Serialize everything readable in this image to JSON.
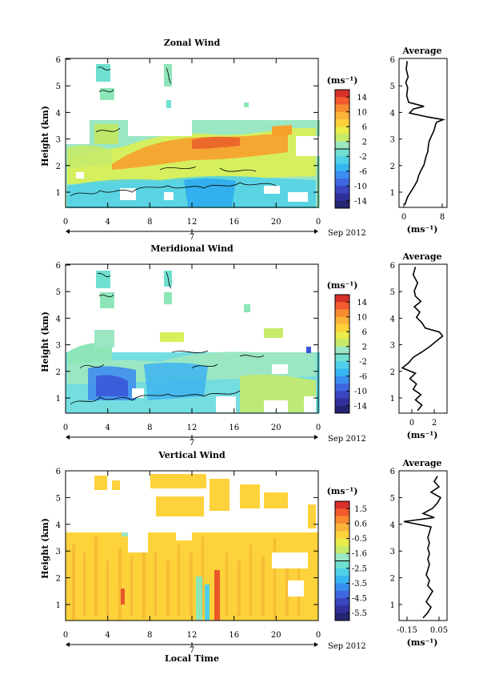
{
  "chart_data": [
    {
      "type": "heatmap",
      "title": "Zonal Wind",
      "ylabel": "Height (km)",
      "xlim": [
        0,
        24
      ],
      "ylim": [
        0.4,
        6
      ],
      "x_ticks": [
        "0",
        "4",
        "8",
        "12",
        "16",
        "20",
        "0"
      ],
      "y_ticks": [
        "1",
        "2",
        "3",
        "4",
        "5",
        "6"
      ],
      "date_label": "7",
      "month_label": "Sep 2012",
      "colorbar": {
        "unit": "(ms⁻¹)",
        "ticks": [
          "14",
          "10",
          "6",
          "2",
          "-2",
          "-6",
          "-10",
          "-14"
        ],
        "range": [
          -16,
          16
        ]
      },
      "profile": {
        "title": "Average",
        "xlabel": "(ms⁻¹)",
        "xlim": [
          -1,
          9
        ],
        "x_ticks": [
          "0",
          "8"
        ],
        "points": [
          [
            0.2,
            0.5
          ],
          [
            0.8,
            0.8
          ],
          [
            1.5,
            1.0
          ],
          [
            2.2,
            1.2
          ],
          [
            2.8,
            1.4
          ],
          [
            3.1,
            1.6
          ],
          [
            3.6,
            1.8
          ],
          [
            4.2,
            2.0
          ],
          [
            4.6,
            2.3
          ],
          [
            5.0,
            2.5
          ],
          [
            5.1,
            2.7
          ],
          [
            5.3,
            2.9
          ],
          [
            5.8,
            3.1
          ],
          [
            6.3,
            3.3
          ],
          [
            6.6,
            3.5
          ],
          [
            6.8,
            3.6
          ],
          [
            8.2,
            3.7
          ],
          [
            5.0,
            3.8
          ],
          [
            1.2,
            3.95
          ],
          [
            2.0,
            4.1
          ],
          [
            4.2,
            4.2
          ],
          [
            1.0,
            4.35
          ],
          [
            0.6,
            4.6
          ],
          [
            0.8,
            4.9
          ],
          [
            0.4,
            5.1
          ],
          [
            0.9,
            5.3
          ],
          [
            0.5,
            5.6
          ],
          [
            0.7,
            5.9
          ]
        ]
      }
    },
    {
      "type": "heatmap",
      "title": "Meridional Wind",
      "ylabel": "Height (km)",
      "xlim": [
        0,
        24
      ],
      "ylim": [
        0.4,
        6
      ],
      "x_ticks": [
        "0",
        "4",
        "8",
        "12",
        "16",
        "20",
        "0"
      ],
      "y_ticks": [
        "1",
        "2",
        "3",
        "4",
        "5",
        "6"
      ],
      "date_label": "7",
      "month_label": "Sep 2012",
      "colorbar": {
        "unit": "(ms⁻¹)",
        "ticks": [
          "14",
          "10",
          "6",
          "2",
          "-2",
          "-6",
          "-10",
          "-14"
        ],
        "range": [
          -16,
          16
        ]
      },
      "profile": {
        "title": "Average",
        "xlabel": "(ms⁻¹)",
        "xlim": [
          -1.2,
          3.2
        ],
        "x_ticks": [
          "0",
          "2"
        ],
        "points": [
          [
            0.5,
            0.5
          ],
          [
            0.9,
            0.7
          ],
          [
            0.3,
            0.9
          ],
          [
            0.8,
            1.1
          ],
          [
            0.1,
            1.3
          ],
          [
            0.4,
            1.5
          ],
          [
            -0.2,
            1.7
          ],
          [
            0.3,
            1.9
          ],
          [
            -0.9,
            2.1
          ],
          [
            -0.3,
            2.3
          ],
          [
            0.1,
            2.5
          ],
          [
            0.9,
            2.7
          ],
          [
            1.6,
            2.9
          ],
          [
            2.2,
            3.1
          ],
          [
            2.8,
            3.3
          ],
          [
            2.5,
            3.45
          ],
          [
            1.2,
            3.6
          ],
          [
            0.9,
            3.8
          ],
          [
            0.4,
            4.0
          ],
          [
            0.7,
            4.2
          ],
          [
            0.2,
            4.4
          ],
          [
            0.8,
            4.6
          ],
          [
            0.3,
            4.8
          ],
          [
            0.2,
            5.0
          ],
          [
            0.5,
            5.3
          ],
          [
            0.1,
            5.6
          ],
          [
            0.3,
            5.9
          ]
        ]
      }
    },
    {
      "type": "heatmap",
      "title": "Vertical Wind",
      "ylabel": "Height (km)",
      "xlabel": "Local Time",
      "xlim": [
        0,
        24
      ],
      "ylim": [
        0.4,
        6
      ],
      "x_ticks": [
        "0",
        "4",
        "8",
        "12",
        "16",
        "20",
        "0"
      ],
      "y_ticks": [
        "1",
        "2",
        "3",
        "4",
        "5",
        "6"
      ],
      "date_label": "7",
      "month_label": "Sep 2012",
      "colorbar": {
        "unit": "(ms⁻¹)",
        "ticks": [
          "1.5",
          "0.6",
          "-0.5",
          "-1.6",
          "-2.5",
          "-3.5",
          "-4.5",
          "-5.5"
        ],
        "range": [
          -6,
          2
        ]
      },
      "profile": {
        "title": "Average",
        "xlabel": "(ms⁻¹)",
        "xlim": [
          -0.2,
          0.1
        ],
        "x_ticks": [
          "-0.15",
          "0.05"
        ],
        "points": [
          [
            -0.05,
            0.5
          ],
          [
            -0.02,
            0.7
          ],
          [
            0.0,
            0.9
          ],
          [
            -0.03,
            1.1
          ],
          [
            -0.01,
            1.3
          ],
          [
            0.01,
            1.5
          ],
          [
            -0.02,
            1.7
          ],
          [
            -0.01,
            1.9
          ],
          [
            -0.03,
            2.1
          ],
          [
            -0.02,
            2.3
          ],
          [
            -0.01,
            2.5
          ],
          [
            -0.02,
            2.7
          ],
          [
            -0.01,
            2.9
          ],
          [
            -0.02,
            3.1
          ],
          [
            -0.01,
            3.3
          ],
          [
            -0.02,
            3.5
          ],
          [
            -0.01,
            3.7
          ],
          [
            0.0,
            3.9
          ],
          [
            -0.17,
            4.1
          ],
          [
            0.02,
            4.25
          ],
          [
            -0.05,
            4.4
          ],
          [
            0.01,
            4.6
          ],
          [
            0.04,
            4.8
          ],
          [
            0.06,
            5.0
          ],
          [
            0.0,
            5.2
          ],
          [
            0.05,
            5.4
          ],
          [
            0.02,
            5.6
          ],
          [
            0.04,
            5.8
          ]
        ]
      }
    }
  ]
}
